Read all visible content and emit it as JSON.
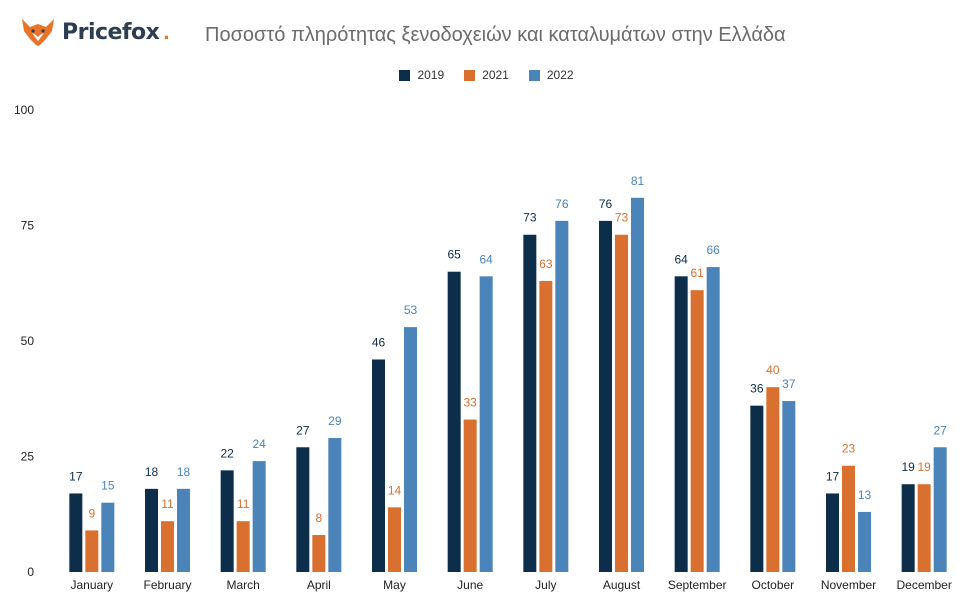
{
  "brand": {
    "name": "Pricefox",
    "dot": ".",
    "icon": "fox-logo-icon",
    "colors": {
      "fox": "#e8742a",
      "text": "#2c3e50"
    }
  },
  "chart_data": {
    "type": "bar",
    "title": "Ποσοστό πληρότητας ξενοδοχειών και καταλυμάτων στην Ελλάδα",
    "xlabel": "",
    "ylabel": "",
    "ylim": [
      0,
      100
    ],
    "yticks": [
      0,
      25,
      50,
      75,
      100
    ],
    "grid": false,
    "legend_position": "top-center",
    "categories": [
      "January",
      "February",
      "March",
      "April",
      "May",
      "June",
      "July",
      "August",
      "September",
      "October",
      "November",
      "December"
    ],
    "series": [
      {
        "name": "2019",
        "color": "#0d2e4a",
        "values": [
          17,
          18,
          22,
          27,
          46,
          65,
          73,
          76,
          64,
          36,
          17,
          19
        ]
      },
      {
        "name": "2021",
        "color": "#d9702f",
        "values": [
          9,
          11,
          11,
          8,
          14,
          33,
          63,
          73,
          61,
          40,
          23,
          19
        ]
      },
      {
        "name": "2022",
        "color": "#4a84b8",
        "values": [
          15,
          18,
          24,
          29,
          53,
          64,
          76,
          81,
          66,
          37,
          13,
          27
        ]
      }
    ]
  }
}
